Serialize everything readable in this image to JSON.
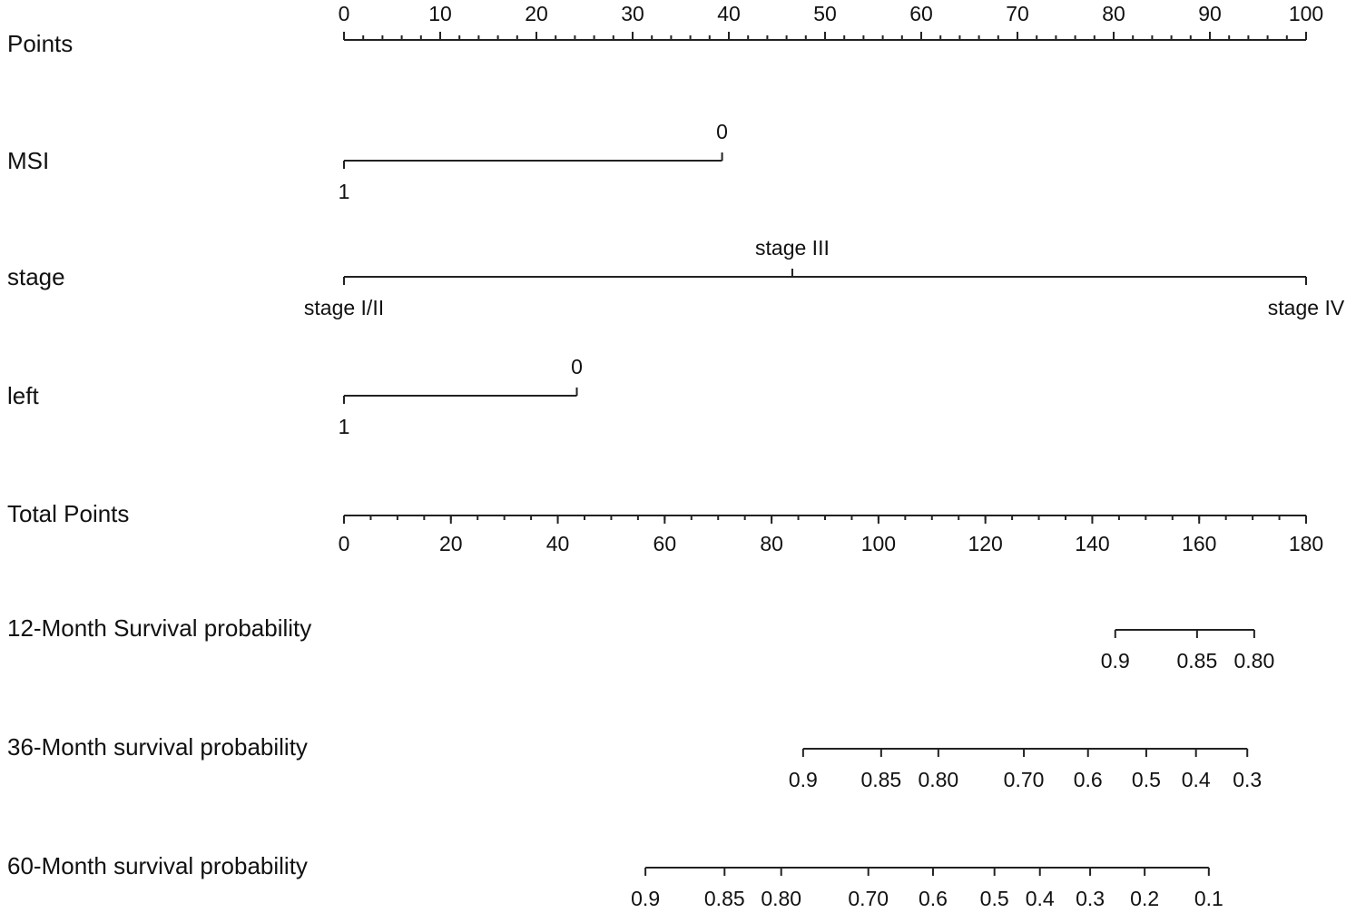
{
  "chart_data": {
    "type": "nomogram",
    "points_axis": {
      "label": "Points",
      "xlim": [
        0,
        100
      ],
      "xticks": [
        0,
        10,
        20,
        30,
        40,
        50,
        60,
        70,
        80,
        90,
        100
      ],
      "minor_tick_step": 2
    },
    "variables": [
      {
        "name": "MSI",
        "levels": [
          {
            "label": "1",
            "points": 0
          },
          {
            "label": "0",
            "points": 39.3
          }
        ]
      },
      {
        "name": "stage",
        "levels": [
          {
            "label": "stage I/II",
            "points": 0
          },
          {
            "label": "stage III",
            "points": 46.6
          },
          {
            "label": "stage IV",
            "points": 100
          }
        ]
      },
      {
        "name": "left",
        "levels": [
          {
            "label": "1",
            "points": 0
          },
          {
            "label": "0",
            "points": 24.2
          }
        ]
      }
    ],
    "total_points_axis": {
      "label": "Total Points",
      "xlim": [
        0,
        180
      ],
      "xticks": [
        0,
        20,
        40,
        60,
        80,
        100,
        120,
        140,
        160,
        180
      ],
      "minor_tick_step": 5
    },
    "probability_scales": [
      {
        "name": "12-Month Survival probability",
        "ticks": [
          {
            "value": 0.9,
            "total_points": 144.3
          },
          {
            "value": 0.85,
            "total_points": 159.6
          },
          {
            "value": 0.8,
            "label": "0.80",
            "total_points": 170.3
          }
        ]
      },
      {
        "name": "36-Month survival probability",
        "ticks": [
          {
            "value": 0.9,
            "total_points": 85.9
          },
          {
            "value": 0.85,
            "total_points": 100.5
          },
          {
            "value": 0.8,
            "label": "0.80",
            "total_points": 111.2
          },
          {
            "value": 0.7,
            "label": "0.70",
            "total_points": 127.2
          },
          {
            "value": 0.6,
            "total_points": 139.2
          },
          {
            "value": 0.5,
            "total_points": 150.1
          },
          {
            "value": 0.4,
            "total_points": 159.4
          },
          {
            "value": 0.3,
            "total_points": 169.0
          }
        ]
      },
      {
        "name": "60-Month survival probability",
        "ticks": [
          {
            "value": 0.9,
            "total_points": 56.4
          },
          {
            "value": 0.85,
            "total_points": 71.2
          },
          {
            "value": 0.8,
            "label": "0.80",
            "total_points": 81.8
          },
          {
            "value": 0.7,
            "label": "0.70",
            "total_points": 98.1
          },
          {
            "value": 0.6,
            "total_points": 110.2
          },
          {
            "value": 0.5,
            "total_points": 121.7
          },
          {
            "value": 0.4,
            "total_points": 130.2
          },
          {
            "value": 0.3,
            "total_points": 139.6
          },
          {
            "value": 0.2,
            "total_points": 149.8
          },
          {
            "value": 0.1,
            "total_points": 161.8
          }
        ]
      }
    ]
  }
}
